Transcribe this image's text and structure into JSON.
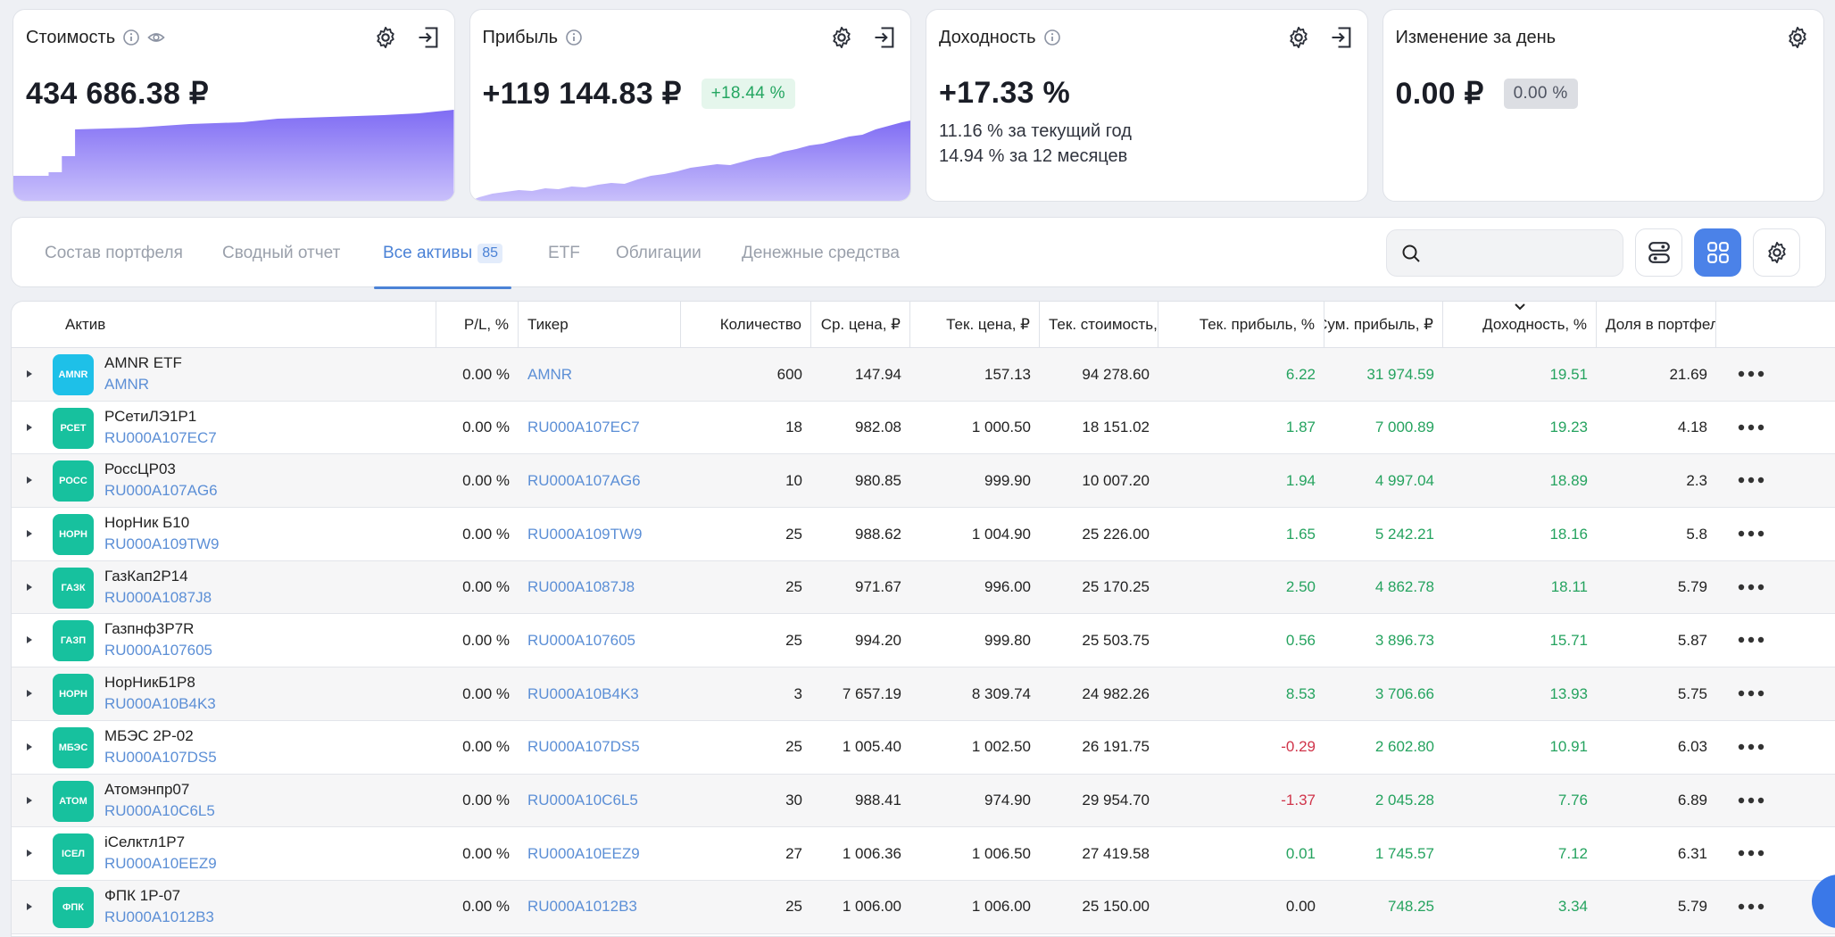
{
  "cards": {
    "value": {
      "title": "Стоимость",
      "amount": "434 686.38 ₽"
    },
    "profit": {
      "title": "Прибыль",
      "amount": "+119 144.83 ₽",
      "pill": "+18.44 %"
    },
    "yield": {
      "title": "Доходность",
      "amount": "+17.33 %",
      "line1": "11.16 % за текущий год",
      "line2": "14.94 % за 12 месяцев"
    },
    "daychange": {
      "title": "Изменение за день",
      "amount": "0.00 ₽",
      "pill": "0.00 %"
    }
  },
  "tabs": [
    {
      "label": "Состав портфеля"
    },
    {
      "label": "Сводный отчет"
    },
    {
      "label": "Все активы",
      "badge": "85"
    },
    {
      "label": "ETF"
    },
    {
      "label": "Облигации"
    },
    {
      "label": "Денежные средства"
    }
  ],
  "search": {
    "value": ""
  },
  "table": {
    "headers": {
      "asset": "Актив",
      "pl": "P/L, %",
      "ticker": "Тикер",
      "qty": "Количество",
      "avg": "Ср. цена, ₽",
      "cur": "Тек. цена, ₽",
      "cost": "Тек. стоимость,",
      "curprofit": "Тек. прибыль, %",
      "sumprofit": "Сум. прибыль, ₽",
      "yield": "Доходность, %",
      "share": "Доля в портфел"
    },
    "rows": [
      {
        "logo": "AMNR",
        "color": "#1ec0e8",
        "name": "AMNR ETF",
        "code": "AMNR",
        "pl": "0.00 %",
        "ticker": "AMNR",
        "qty": "600",
        "avg": "147.94",
        "cur": "157.13",
        "cost": "94 278.60",
        "curprofit": "6.22",
        "sumprofit": "31 974.59",
        "yield": "19.51",
        "share": "21.69"
      },
      {
        "logo": "РСЕТ",
        "color": "#17c19e",
        "name": "РСетиЛЭ1Р1",
        "code": "RU000A107EC7",
        "pl": "0.00 %",
        "ticker": "RU000A107EC7",
        "qty": "18",
        "avg": "982.08",
        "cur": "1 000.50",
        "cost": "18 151.02",
        "curprofit": "1.87",
        "sumprofit": "7 000.89",
        "yield": "19.23",
        "share": "4.18"
      },
      {
        "logo": "РОСС",
        "color": "#17c19e",
        "name": "РоссЦР03",
        "code": "RU000A107AG6",
        "pl": "0.00 %",
        "ticker": "RU000A107AG6",
        "qty": "10",
        "avg": "980.85",
        "cur": "999.90",
        "cost": "10 007.20",
        "curprofit": "1.94",
        "sumprofit": "4 997.04",
        "yield": "18.89",
        "share": "2.3"
      },
      {
        "logo": "НОРН",
        "color": "#17c19e",
        "name": "НорНик Б10",
        "code": "RU000A109TW9",
        "pl": "0.00 %",
        "ticker": "RU000A109TW9",
        "qty": "25",
        "avg": "988.62",
        "cur": "1 004.90",
        "cost": "25 226.00",
        "curprofit": "1.65",
        "sumprofit": "5 242.21",
        "yield": "18.16",
        "share": "5.8"
      },
      {
        "logo": "ГАЗК",
        "color": "#17c19e",
        "name": "ГазКап2Р14",
        "code": "RU000A1087J8",
        "pl": "0.00 %",
        "ticker": "RU000A1087J8",
        "qty": "25",
        "avg": "971.67",
        "cur": "996.00",
        "cost": "25 170.25",
        "curprofit": "2.50",
        "sumprofit": "4 862.78",
        "yield": "18.11",
        "share": "5.79"
      },
      {
        "logo": "ГАЗП",
        "color": "#17c19e",
        "name": "Газпнф3Р7R",
        "code": "RU000A107605",
        "pl": "0.00 %",
        "ticker": "RU000A107605",
        "qty": "25",
        "avg": "994.20",
        "cur": "999.80",
        "cost": "25 503.75",
        "curprofit": "0.56",
        "sumprofit": "3 896.73",
        "yield": "15.71",
        "share": "5.87"
      },
      {
        "logo": "НОРН",
        "color": "#17c19e",
        "name": "НорНикБ1Р8",
        "code": "RU000A10B4K3",
        "pl": "0.00 %",
        "ticker": "RU000A10B4K3",
        "qty": "3",
        "avg": "7 657.19",
        "cur": "8 309.74",
        "cost": "24 982.26",
        "curprofit": "8.53",
        "sumprofit": "3 706.66",
        "yield": "13.93",
        "share": "5.75"
      },
      {
        "logo": "МБЭС",
        "color": "#17c19e",
        "name": "МБЭС 2Р-02",
        "code": "RU000A107DS5",
        "pl": "0.00 %",
        "ticker": "RU000A107DS5",
        "qty": "25",
        "avg": "1 005.40",
        "cur": "1 002.50",
        "cost": "26 191.75",
        "curprofit": "-0.29",
        "sumprofit": "2 602.80",
        "yield": "10.91",
        "share": "6.03"
      },
      {
        "logo": "АТОМ",
        "color": "#17c19e",
        "name": "Атомэнпр07",
        "code": "RU000A10C6L5",
        "pl": "0.00 %",
        "ticker": "RU000A10C6L5",
        "qty": "30",
        "avg": "988.41",
        "cur": "974.90",
        "cost": "29 954.70",
        "curprofit": "-1.37",
        "sumprofit": "2 045.28",
        "yield": "7.76",
        "share": "6.89"
      },
      {
        "logo": "ICЕЛ",
        "color": "#17c19e",
        "name": "iСелктл1Р7",
        "code": "RU000A10EEZ9",
        "pl": "0.00 %",
        "ticker": "RU000A10EEZ9",
        "qty": "27",
        "avg": "1 006.36",
        "cur": "1 006.50",
        "cost": "27 419.58",
        "curprofit": "0.01",
        "sumprofit": "1 745.57",
        "yield": "7.12",
        "share": "6.31"
      },
      {
        "logo": "ФПК",
        "color": "#17c19e",
        "name": "ФПК 1Р-07",
        "code": "RU000A1012B3",
        "pl": "0.00 %",
        "ticker": "RU000A1012B3",
        "qty": "25",
        "avg": "1 006.00",
        "cur": "1 006.00",
        "cost": "25 150.00",
        "curprofit": "0.00",
        "sumprofit": "748.25",
        "yield": "3.34",
        "share": "5.79"
      }
    ]
  },
  "colors": {
    "accent": "#4b82e8",
    "positive": "#25a35f",
    "negative": "#d0344a",
    "chart": "#8a74f5"
  }
}
